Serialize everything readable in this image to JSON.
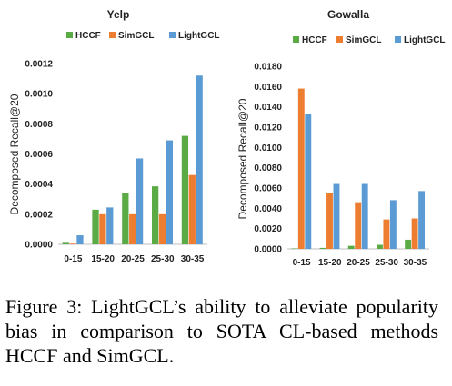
{
  "chart_data": [
    {
      "type": "bar",
      "title": "Yelp",
      "ylabel": "Decomposed Recall@20",
      "categories": [
        "0-15",
        "15-20",
        "20-25",
        "25-30",
        "30-35"
      ],
      "ylim": [
        0,
        0.0012
      ],
      "yticks": [
        "0.0000",
        "0.0002",
        "0.0004",
        "0.0006",
        "0.0008",
        "0.0010",
        "0.0012"
      ],
      "legend": "top-left",
      "series": [
        {
          "name": "HCCF",
          "color": "#5aaa46",
          "values": [
            1e-05,
            0.00023,
            0.00034,
            0.000385,
            0.00072
          ]
        },
        {
          "name": "SimGCL",
          "color": "#ed7d31",
          "values": [
            5e-06,
            0.0002,
            0.0002,
            0.0002,
            0.00046
          ]
        },
        {
          "name": "LightGCL",
          "color": "#5b9bd5",
          "values": [
            6e-05,
            0.000245,
            0.00057,
            0.00069,
            0.00112
          ]
        }
      ]
    },
    {
      "type": "bar",
      "title": "Gowalla",
      "ylabel": "Decomposed Recall@20",
      "categories": [
        "0-15",
        "15-20",
        "20-25",
        "25-30",
        "30-35"
      ],
      "ylim": [
        0,
        0.018
      ],
      "yticks": [
        "0.0000",
        "0.0020",
        "0.0040",
        "0.0060",
        "0.0080",
        "0.0100",
        "0.0120",
        "0.0140",
        "0.0160",
        "0.0180"
      ],
      "legend": "top",
      "series": [
        {
          "name": "HCCF",
          "color": "#5aaa46",
          "values": [
            5e-05,
            0.0001,
            0.0003,
            0.0004,
            0.0009
          ]
        },
        {
          "name": "SimGCL",
          "color": "#ed7d31",
          "values": [
            0.0158,
            0.0055,
            0.0046,
            0.0029,
            0.003
          ]
        },
        {
          "name": "LightGCL",
          "color": "#5b9bd5",
          "values": [
            0.0133,
            0.0064,
            0.0064,
            0.0048,
            0.0057
          ]
        }
      ]
    }
  ],
  "caption": "Figure 3:  LightGCL’s ability to alleviate popularity bias in comparison to SOTA CL-based methods HCCF and SimGCL."
}
